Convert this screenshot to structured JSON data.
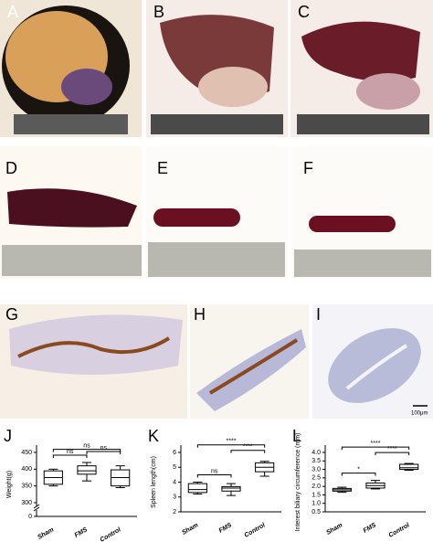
{
  "panel_labels": [
    "A",
    "B",
    "C",
    "D",
    "E",
    "F",
    "G",
    "H",
    "I",
    "J",
    "K",
    "L"
  ],
  "scale_bar_label": "100μm",
  "chart_data": [
    {
      "type": "box",
      "y_label": "Weight(g)",
      "categories": [
        "Sham",
        "FMS",
        "Control"
      ],
      "boxes": [
        {
          "min": 350,
          "q1": 355,
          "median": 375,
          "q3": 395,
          "max": 400
        },
        {
          "min": 365,
          "q1": 385,
          "median": 395,
          "q3": 410,
          "max": 420
        },
        {
          "min": 345,
          "q1": 350,
          "median": 375,
          "q3": 398,
          "max": 410
        }
      ],
      "ylim": [
        300,
        450
      ],
      "yticks": [
        300,
        350,
        400,
        450
      ],
      "lower_yticks": [
        0
      ],
      "comparisons": [
        {
          "from": 0,
          "to": 1,
          "label": "ns"
        },
        {
          "from": 1,
          "to": 2,
          "label": "ns"
        },
        {
          "from": 0,
          "to": 2,
          "label": "ns"
        }
      ]
    },
    {
      "type": "box",
      "y_label": "Spleen length(cm)",
      "categories": [
        "Sham",
        "FMS",
        "Control"
      ],
      "boxes": [
        {
          "min": 3.2,
          "q1": 3.3,
          "median": 3.5,
          "q3": 3.9,
          "max": 4.0
        },
        {
          "min": 3.1,
          "q1": 3.4,
          "median": 3.6,
          "q3": 3.7,
          "max": 3.9
        },
        {
          "min": 4.4,
          "q1": 4.7,
          "median": 5.0,
          "q3": 5.3,
          "max": 5.4
        }
      ],
      "ylim": [
        2,
        6
      ],
      "yticks": [
        2,
        3,
        4,
        5,
        6
      ],
      "comparisons": [
        {
          "from": 0,
          "to": 1,
          "label": "ns"
        },
        {
          "from": 1,
          "to": 2,
          "label": "****"
        },
        {
          "from": 0,
          "to": 2,
          "label": "****"
        }
      ]
    },
    {
      "type": "box",
      "y_label": "Interest biliary circumference (mm)",
      "categories": [
        "Sham",
        "FMS",
        "Control"
      ],
      "boxes": [
        {
          "min": 1.65,
          "q1": 1.72,
          "median": 1.8,
          "q3": 1.88,
          "max": 1.95
        },
        {
          "min": 1.85,
          "q1": 1.9,
          "median": 2.05,
          "q3": 2.2,
          "max": 2.35
        },
        {
          "min": 2.95,
          "q1": 3.0,
          "median": 3.1,
          "q3": 3.3,
          "max": 3.35
        }
      ],
      "ylim": [
        0.5,
        4
      ],
      "yticks": [
        {
          "value": 0.5,
          "label": "0.5"
        },
        {
          "value": 1,
          "label": "1.0"
        },
        {
          "value": 1.5,
          "label": "1.5"
        },
        {
          "value": 2,
          "label": "2.0"
        },
        {
          "value": 2.5,
          "label": "2.5"
        },
        {
          "value": 3,
          "label": "3.0"
        },
        {
          "value": 3.5,
          "label": "3.5"
        },
        {
          "value": 4,
          "label": "4.0"
        }
      ],
      "comparisons": [
        {
          "from": 0,
          "to": 1,
          "label": "*"
        },
        {
          "from": 1,
          "to": 2,
          "label": "****"
        },
        {
          "from": 0,
          "to": 2,
          "label": "****"
        }
      ]
    }
  ]
}
